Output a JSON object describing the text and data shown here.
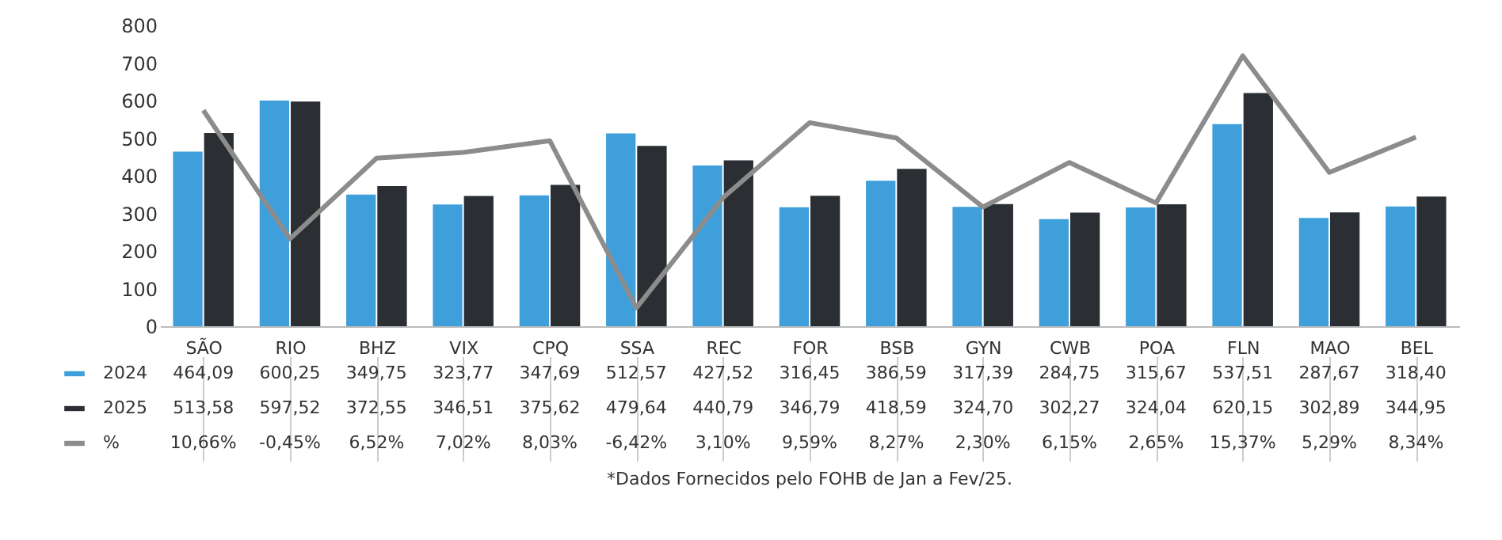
{
  "chart_data": {
    "type": "bar",
    "categories": [
      "SÃO",
      "RIO",
      "BHZ",
      "VIX",
      "CPQ",
      "SSA",
      "REC",
      "FOR",
      "BSB",
      "GYN",
      "CWB",
      "POA",
      "FLN",
      "MAO",
      "BEL"
    ],
    "ylim": [
      0,
      800
    ],
    "yticks": [
      0,
      100,
      200,
      300,
      400,
      500,
      600,
      700,
      800
    ],
    "grid": false,
    "legend": "bottom left",
    "series": [
      {
        "name": "2024",
        "color": "#3f9fdb",
        "values": [
          464.09,
          600.25,
          349.75,
          323.77,
          347.69,
          512.57,
          427.52,
          316.45,
          386.59,
          317.39,
          284.75,
          315.67,
          537.51,
          287.67,
          318.4
        ],
        "value_labels": [
          "464,09",
          "600,25",
          "349,75",
          "323,77",
          "347,69",
          "512,57",
          "427,52",
          "316,45",
          "386,59",
          "317,39",
          "284,75",
          "315,67",
          "537,51",
          "287,67",
          "318,40"
        ]
      },
      {
        "name": "2025",
        "color": "#2b2f33",
        "values": [
          513.58,
          597.52,
          372.55,
          346.51,
          375.62,
          479.64,
          440.79,
          346.79,
          418.59,
          324.7,
          302.27,
          324.04,
          620.15,
          302.89,
          344.95
        ],
        "value_labels": [
          "513,58",
          "597,52",
          "372,55",
          "346,51",
          "375,62",
          "479,64",
          "440,79",
          "346,79",
          "418,59",
          "324,70",
          "302,27",
          "324,04",
          "620,15",
          "302,89",
          "344,95"
        ]
      },
      {
        "name": "%",
        "type": "line",
        "axis": "y2",
        "color": "#8c8c8c",
        "values": [
          10.66,
          -0.45,
          6.52,
          7.02,
          8.03,
          -6.42,
          3.1,
          9.59,
          8.27,
          2.3,
          6.15,
          2.65,
          15.37,
          5.29,
          8.34
        ],
        "value_labels": [
          "10,66%",
          "-0,45%",
          "6,52%",
          "7,02%",
          "8,03%",
          "-6,42%",
          "3,10%",
          "9,59%",
          "8,27%",
          "2,30%",
          "6,15%",
          "2,65%",
          "15,37%",
          "5,29%",
          "8,34%"
        ]
      }
    ],
    "annotations": [
      "*Dados Fornecidos pelo FOHB de Jan a Fev/25."
    ]
  }
}
